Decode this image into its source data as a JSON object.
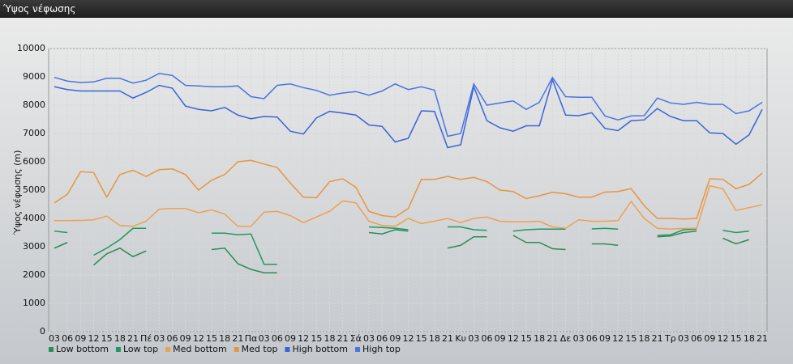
{
  "chart_data": {
    "type": "line",
    "title": "Ύψος νέφωσης",
    "y_label": "Ύψος νέφωσης (m)",
    "categories": [
      "03",
      "06",
      "09",
      "12",
      "15",
      "18",
      "21",
      "Πέ",
      "03",
      "06",
      "09",
      "12",
      "15",
      "18",
      "21",
      "Πα",
      "03",
      "06",
      "09",
      "12",
      "15",
      "18",
      "21",
      "Σά",
      "03",
      "06",
      "09",
      "12",
      "15",
      "18",
      "21",
      "Κυ",
      "03",
      "06",
      "09",
      "12",
      "15",
      "18",
      "21",
      "Δε",
      "03",
      "06",
      "09",
      "12",
      "15",
      "18",
      "21",
      "Τρ",
      "03",
      "06",
      "09",
      "12",
      "15",
      "18",
      "21"
    ],
    "ylim": [
      0,
      10000
    ],
    "yticks": [
      0,
      1000,
      2000,
      3000,
      4000,
      5000,
      6000,
      7000,
      8000,
      9000,
      10000
    ],
    "grid": true,
    "series": [
      {
        "name": "Low bottom",
        "color": "#2e8b57",
        "values": [
          2950,
          3150,
          null,
          2350,
          2750,
          2950,
          2650,
          2850,
          null,
          null,
          null,
          null,
          2900,
          2950,
          2400,
          2200,
          2080,
          2080,
          null,
          null,
          null,
          null,
          null,
          null,
          3500,
          3450,
          3600,
          3550,
          null,
          null,
          2950,
          3050,
          3350,
          3350,
          null,
          3400,
          3150,
          3150,
          2930,
          2900,
          null,
          3100,
          3100,
          3050,
          null,
          null,
          3350,
          3380,
          3500,
          3550,
          null,
          3300,
          3100,
          3250,
          null
        ]
      },
      {
        "name": "Low top",
        "color": "#1e9960",
        "values": [
          3550,
          3500,
          null,
          2700,
          2950,
          3250,
          3650,
          3650,
          null,
          null,
          null,
          null,
          3480,
          3480,
          3420,
          3450,
          2380,
          2380,
          null,
          null,
          null,
          null,
          null,
          null,
          3700,
          3680,
          3650,
          3600,
          null,
          null,
          3700,
          3700,
          3600,
          3580,
          null,
          3550,
          3600,
          3620,
          3620,
          3620,
          null,
          3630,
          3650,
          3620,
          null,
          null,
          3400,
          3420,
          3600,
          3620,
          null,
          3580,
          3500,
          3550,
          null
        ]
      },
      {
        "name": "Med bottom",
        "color": "#f0a050",
        "values": [
          3920,
          3920,
          3930,
          3950,
          4080,
          3750,
          3720,
          3900,
          4330,
          4350,
          4350,
          4200,
          4300,
          4150,
          3720,
          3720,
          4220,
          4250,
          4100,
          3850,
          4050,
          4250,
          4620,
          4550,
          3900,
          3750,
          3720,
          4000,
          3820,
          3900,
          4000,
          3850,
          4000,
          4050,
          3900,
          3880,
          3880,
          3900,
          3700,
          3650,
          3950,
          3900,
          3900,
          3920,
          4600,
          4000,
          3650,
          3620,
          3650,
          3650,
          5150,
          5050,
          4280,
          4380,
          4480
        ]
      },
      {
        "name": "Med top",
        "color": "#e89540",
        "values": [
          4550,
          4850,
          5650,
          5620,
          4750,
          5550,
          5700,
          5480,
          5720,
          5750,
          5550,
          5000,
          5350,
          5550,
          6000,
          6050,
          5920,
          5800,
          5250,
          4750,
          4730,
          5300,
          5400,
          5100,
          4250,
          4100,
          4050,
          4350,
          5380,
          5380,
          5480,
          5380,
          5450,
          5300,
          5000,
          4950,
          4700,
          4800,
          4920,
          4870,
          4750,
          4750,
          4930,
          4950,
          5050,
          4450,
          4000,
          4000,
          3980,
          4000,
          5400,
          5380,
          5050,
          5200,
          5600
        ]
      },
      {
        "name": "High bottom",
        "color": "#3a64d8",
        "values": [
          8650,
          8550,
          8500,
          8500,
          8500,
          8500,
          8250,
          8450,
          8700,
          8600,
          7970,
          7850,
          7800,
          7920,
          7650,
          7520,
          7600,
          7580,
          7080,
          6980,
          7550,
          7780,
          7720,
          7650,
          7300,
          7250,
          6700,
          6830,
          7800,
          7780,
          6500,
          6600,
          8650,
          7450,
          7200,
          7080,
          7270,
          7270,
          8900,
          7650,
          7630,
          7730,
          7180,
          7100,
          7450,
          7480,
          7880,
          7600,
          7450,
          7450,
          7020,
          7000,
          6620,
          6950,
          7850
        ]
      },
      {
        "name": "High top",
        "color": "#4a74e0",
        "values": [
          8980,
          8850,
          8800,
          8820,
          8950,
          8950,
          8780,
          8880,
          9120,
          9050,
          8700,
          8680,
          8650,
          8650,
          8680,
          8300,
          8230,
          8700,
          8750,
          8620,
          8520,
          8350,
          8430,
          8480,
          8350,
          8500,
          8750,
          8550,
          8650,
          8530,
          6900,
          7000,
          8750,
          8000,
          8080,
          8150,
          7850,
          8100,
          8980,
          8300,
          8280,
          8280,
          7620,
          7480,
          7620,
          7630,
          8250,
          8080,
          8030,
          8100,
          8030,
          8030,
          7700,
          7800,
          8100
        ]
      }
    ]
  }
}
